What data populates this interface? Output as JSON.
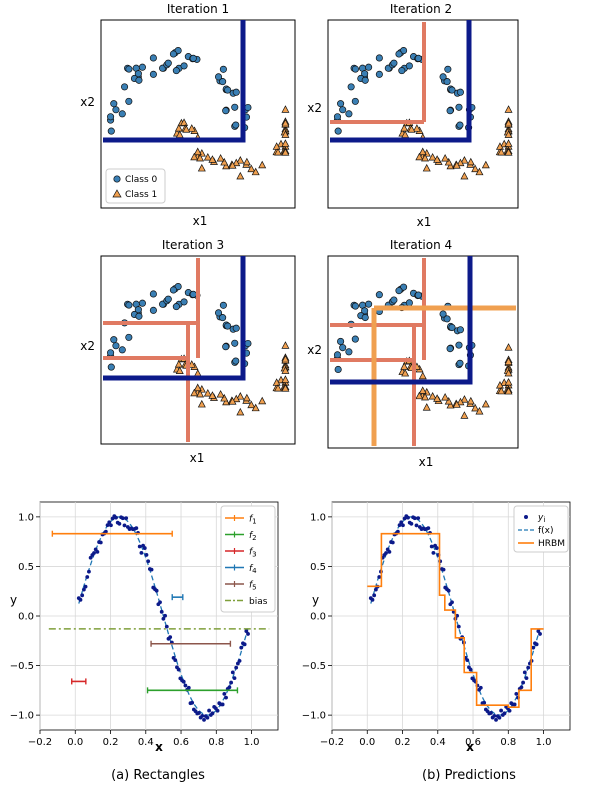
{
  "chart_data": [
    {
      "type": "scatter",
      "title": "Iteration 1",
      "xlabel": "x1",
      "ylabel": "x2",
      "legend": {
        "placement": "lower-left",
        "entries": [
          "Class 0",
          "Class 1"
        ]
      }
    },
    {
      "type": "scatter",
      "title": "Iteration 2",
      "xlabel": "x1",
      "ylabel": "x2"
    },
    {
      "type": "scatter",
      "title": "Iteration 3",
      "xlabel": "x1",
      "ylabel": "x2"
    },
    {
      "type": "scatter",
      "title": "Iteration 4",
      "xlabel": "x1",
      "ylabel": "x2"
    },
    {
      "type": "line",
      "caption": "(a)  Rectangles",
      "xlabel": "x",
      "ylabel": "y",
      "xlim": [
        -0.2,
        1.15
      ],
      "ylim": [
        -1.15,
        1.15
      ],
      "xticks": [
        "−0.2",
        "0.0",
        "0.2",
        "0.4",
        "0.6",
        "0.8",
        "1.0"
      ],
      "yticks": [
        "−1.0",
        "−0.5",
        "0.0",
        "0.5",
        "1.0"
      ],
      "grid": true,
      "legend_placement": "top-right",
      "series": [
        {
          "name": "f1",
          "label_base": "f",
          "label_sub": "1",
          "color": "#ff7f0e",
          "x": [
            -0.13,
            0.55
          ],
          "y": [
            0.83,
            0.83
          ]
        },
        {
          "name": "f2",
          "label_base": "f",
          "label_sub": "2",
          "color": "#2ca02c",
          "x": [
            0.41,
            0.92
          ],
          "y": [
            -0.75,
            -0.75
          ]
        },
        {
          "name": "f3",
          "label_base": "f",
          "label_sub": "3",
          "color": "#d62728",
          "x": [
            -0.02,
            0.06
          ],
          "y": [
            -0.66,
            -0.66
          ]
        },
        {
          "name": "f4",
          "label_base": "f",
          "label_sub": "4",
          "color": "#1f77b4",
          "x": [
            0.55,
            0.61
          ],
          "y": [
            0.19,
            0.19
          ]
        },
        {
          "name": "f5",
          "label_base": "f",
          "label_sub": "5",
          "color": "#8c564b",
          "x": [
            0.43,
            0.88
          ],
          "y": [
            -0.28,
            -0.28
          ]
        },
        {
          "name": "bias",
          "label_base": "bias",
          "label_sub": "",
          "color": "#7f9f3a",
          "dashed": true,
          "x": [
            -0.15,
            1.1
          ],
          "y": [
            -0.13,
            -0.13
          ]
        }
      ]
    },
    {
      "type": "line",
      "caption": "(b)  Predictions",
      "xlabel": "x",
      "ylabel": "y",
      "xlim": [
        -0.2,
        1.15
      ],
      "ylim": [
        -1.15,
        1.15
      ],
      "xticks": [
        "−0.2",
        "0.0",
        "0.2",
        "0.4",
        "0.6",
        "0.8",
        "1.0"
      ],
      "yticks": [
        "−1.0",
        "−0.5",
        "0.0",
        "0.5",
        "1.0"
      ],
      "grid": true,
      "legend_placement": "top-right",
      "series": [
        {
          "name": "yi",
          "label_base": "y",
          "label_sub": "i"
        },
        {
          "name": "f(x)",
          "label_base": "f(x)",
          "label_sub": ""
        },
        {
          "name": "HRBM",
          "label_base": "HRBM",
          "label_sub": "",
          "x": [
            0.0,
            0.05,
            0.05,
            0.08,
            0.08,
            0.41,
            0.41,
            0.44,
            0.44,
            0.5,
            0.5,
            0.55,
            0.55,
            0.62,
            0.62,
            0.8,
            0.8,
            0.86,
            0.86,
            0.93,
            0.93,
            0.97,
            0.97,
            1.0
          ],
          "y": [
            0.3,
            0.3,
            0.3,
            0.3,
            0.83,
            0.83,
            0.21,
            0.21,
            0.06,
            0.06,
            -0.22,
            -0.22,
            -0.57,
            -0.57,
            -0.9,
            -0.9,
            -0.92,
            -0.92,
            -0.75,
            -0.75,
            -0.13,
            -0.13,
            -0.13,
            -0.13
          ]
        }
      ]
    }
  ],
  "colors": {
    "class0": "#3a7fb4",
    "class1": "#f0a050",
    "stump": "#e07a62",
    "bound": "#0c1a8a",
    "orange": "#f0a050"
  }
}
